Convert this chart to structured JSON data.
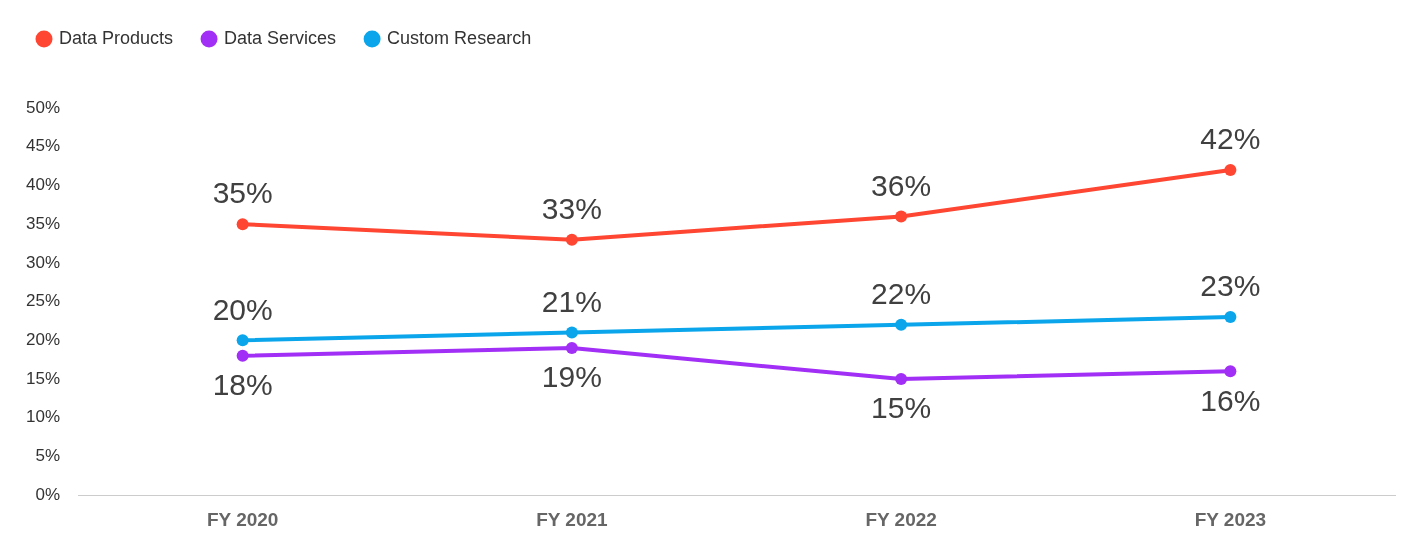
{
  "chart_data": {
    "type": "line",
    "categories": [
      "FY 2020",
      "FY 2021",
      "FY 2022",
      "FY 2023"
    ],
    "series": [
      {
        "name": "Data Products",
        "color": "#ff4632",
        "values": [
          35,
          33,
          36,
          42
        ],
        "value_labels": [
          "35%",
          "33%",
          "36%",
          "42%"
        ]
      },
      {
        "name": "Data Services",
        "color": "#a22ff5",
        "values": [
          18,
          19,
          15,
          16
        ],
        "value_labels": [
          "18%",
          "19%",
          "15%",
          "16%"
        ]
      },
      {
        "name": "Custom Research",
        "color": "#0aa5ea",
        "values": [
          20,
          21,
          22,
          23
        ],
        "value_labels": [
          "20%",
          "21%",
          "22%",
          "23%"
        ]
      }
    ],
    "ylim": [
      0,
      50
    ],
    "yticks": [
      {
        "value": 0,
        "label": "0%"
      },
      {
        "value": 5,
        "label": "5%"
      },
      {
        "value": 10,
        "label": "10%"
      },
      {
        "value": 15,
        "label": "15%"
      },
      {
        "value": 20,
        "label": "20%"
      },
      {
        "value": 25,
        "label": "25%"
      },
      {
        "value": 30,
        "label": "30%"
      },
      {
        "value": 35,
        "label": "35%"
      },
      {
        "value": 40,
        "label": "40%"
      },
      {
        "value": 45,
        "label": "45%"
      },
      {
        "value": 50,
        "label": "50%"
      }
    ],
    "grid": false,
    "legend": "top left",
    "marker": "circle",
    "line_style": "solid"
  }
}
